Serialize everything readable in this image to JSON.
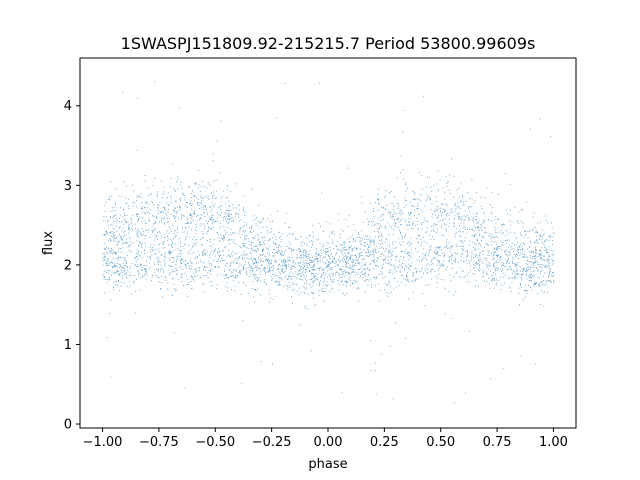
{
  "chart_data": {
    "type": "scatter",
    "title": "1SWASPJ151809.92-215215.7 Period 53800.99609s",
    "xlabel": "phase",
    "ylabel": "flux",
    "xlim": [
      -1.1,
      1.1
    ],
    "ylim": [
      -0.05,
      4.6
    ],
    "x_ticks": [
      -1.0,
      -0.75,
      -0.5,
      -0.25,
      0.0,
      0.25,
      0.5,
      0.75,
      1.0
    ],
    "x_tick_labels": [
      "−1.00",
      "−0.75",
      "−0.50",
      "−0.25",
      "0.00",
      "0.25",
      "0.50",
      "0.75",
      "1.00"
    ],
    "y_ticks": [
      0,
      1,
      2,
      3,
      4
    ],
    "y_tick_labels": [
      "0",
      "1",
      "2",
      "3",
      "4"
    ],
    "grid": false,
    "marker_color": "#1f77b4",
    "series": [
      {
        "points_description_profile": {
          "phase_range": [
            -1.0,
            1.0
          ],
          "profile_x": [
            -1.0,
            -0.9,
            -0.8,
            -0.7,
            -0.6,
            -0.5,
            -0.4,
            -0.3,
            -0.2,
            -0.1,
            0.0,
            0.1,
            0.2,
            0.3,
            0.4,
            0.5,
            0.6,
            0.7,
            0.8,
            0.9,
            1.0
          ],
          "upper_branch_flux": [
            2.35,
            2.5,
            2.6,
            2.65,
            2.7,
            2.65,
            2.5,
            2.25,
            2.05,
            2.0,
            1.98,
            2.1,
            2.4,
            2.55,
            2.62,
            2.65,
            2.55,
            2.4,
            2.25,
            2.15,
            2.1
          ],
          "lower_branch_flux": [
            1.95,
            2.0,
            2.05,
            2.05,
            2.05,
            2.05,
            2.0,
            1.98,
            1.97,
            1.97,
            1.96,
            1.97,
            1.98,
            2.0,
            2.03,
            2.05,
            2.05,
            2.0,
            1.98,
            1.97,
            1.95
          ],
          "scatter_sigma": 0.3,
          "outlier_range": [
            0.2,
            4.4
          ]
        }
      }
    ]
  }
}
